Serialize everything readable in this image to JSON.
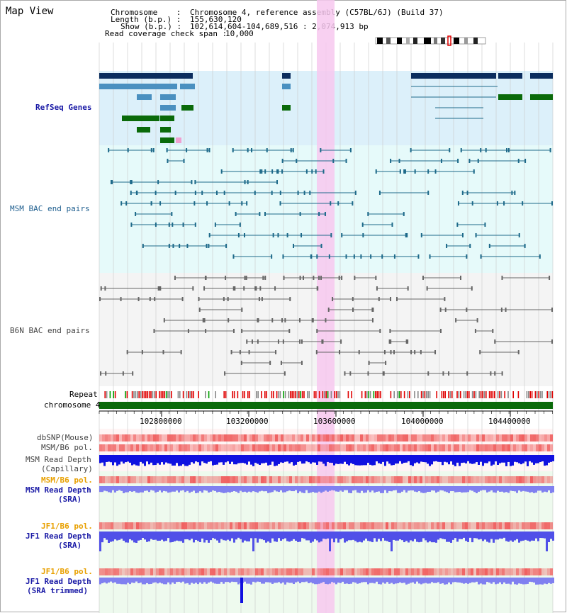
{
  "title": "Map View",
  "info": {
    "chromosome_label": "Chromosome    :",
    "chromosome_value": "Chromosome 4, reference assembly (C57BL/6J) (Build 37)",
    "length_label": "Length (b.p.) :",
    "length_value": "155,630,120",
    "show_label": "Show (b.p.) :",
    "show_value": "102,614,604-104,689,516 : 2,074,913 bp",
    "coverage_label": "Read coverage check span :",
    "coverage_value": "10,000"
  },
  "tracks": {
    "refseq": "RefSeq Genes",
    "msm_bac": "MSM BAC end pairs",
    "b6n_bac": "B6N BAC end pairs",
    "repeat": "Repeat",
    "chromosome": "chromosome 4",
    "dbsnp": "dbSNP(Mouse)",
    "msm_b6_pol": "MSM/B6 pol.",
    "msm_depth_cap_1": "MSM Read Depth",
    "msm_depth_cap_2": "(Capillary)",
    "msm_depth_sra_1": "MSM Read Depth",
    "sra": "(SRA)",
    "jf1_b6_pol": "JF1/B6 pol.",
    "jf1_depth_1": "JF1 Read Depth",
    "sra_trimmed": "(SRA trimmed)"
  },
  "axis": {
    "ticks": [
      "102800000",
      "103200000",
      "103600000",
      "104000000",
      "104400000"
    ]
  },
  "colors": {
    "refseq_dark": "#0b2d5e",
    "refseq_mid": "#4a90c0",
    "refseq_green": "#0a6a0a",
    "msm_bac": "#1e6a8a",
    "b6n_bac": "#666666",
    "highlight": "#f7c8ee",
    "chromosome": "#0a6a0a",
    "depth_blue": "#1010e0",
    "depth_light": "#8080f0",
    "pol_red": "#f06060"
  }
}
